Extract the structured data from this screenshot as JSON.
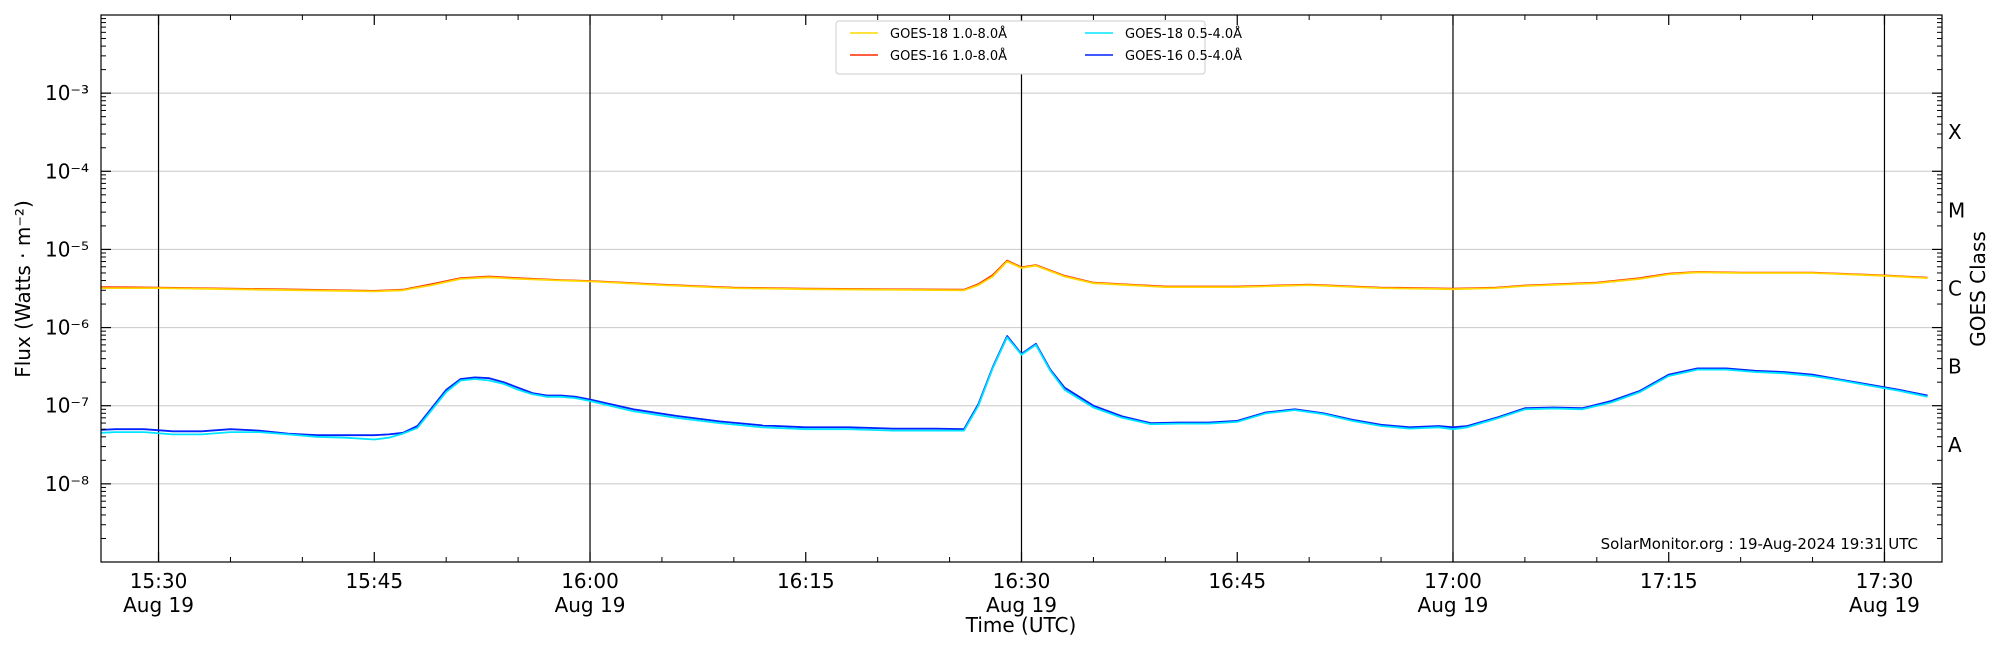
{
  "chart_data": {
    "type": "line",
    "xlabel": "Time (UTC)",
    "ylabel": "Flux (Watts · m⁻²)",
    "ylabel_right": "GOES Class",
    "y_scale": "log",
    "ylim": [
      1e-09,
      0.01
    ],
    "xlim": [
      "2024-08-19 15:26",
      "2024-08-19 17:34"
    ],
    "grid": "horizontal",
    "legend_position": "top-center",
    "y_ticks": [
      {
        "value": 1e-08,
        "label": "10⁻⁸"
      },
      {
        "value": 1e-07,
        "label": "10⁻⁷"
      },
      {
        "value": 1e-06,
        "label": "10⁻⁶"
      },
      {
        "value": 1e-05,
        "label": "10⁻⁵"
      },
      {
        "value": 0.0001,
        "label": "10⁻⁴"
      },
      {
        "value": 0.001,
        "label": "10⁻³"
      }
    ],
    "x_ticks": [
      {
        "time": "15:30",
        "label": "15:30",
        "date": "Aug 19",
        "vline": true
      },
      {
        "time": "15:45",
        "label": "15:45",
        "date": "",
        "vline": false
      },
      {
        "time": "16:00",
        "label": "16:00",
        "date": "Aug 19",
        "vline": true
      },
      {
        "time": "16:15",
        "label": "16:15",
        "date": "",
        "vline": false
      },
      {
        "time": "16:30",
        "label": "16:30",
        "date": "Aug 19",
        "vline": true
      },
      {
        "time": "16:45",
        "label": "16:45",
        "date": "",
        "vline": false
      },
      {
        "time": "17:00",
        "label": "17:00",
        "date": "Aug 19",
        "vline": true
      },
      {
        "time": "17:15",
        "label": "17:15",
        "date": "",
        "vline": false
      },
      {
        "time": "17:30",
        "label": "17:30",
        "date": "Aug 19",
        "vline": true
      }
    ],
    "goes_classes": [
      {
        "label": "A",
        "value": 3.16e-08
      },
      {
        "label": "B",
        "value": 3.16e-07
      },
      {
        "label": "C",
        "value": 3.16e-06
      },
      {
        "label": "M",
        "value": 3.16e-05
      },
      {
        "label": "X",
        "value": 0.000316
      }
    ],
    "series": [
      {
        "name": "GOES-18 1.0-8.0Å",
        "color": "#ffd700",
        "x": [
          "15:26",
          "15:30",
          "15:35",
          "15:40",
          "15:45",
          "15:47",
          "15:49",
          "15:51",
          "15:53",
          "15:55",
          "15:58",
          "16:00",
          "16:05",
          "16:10",
          "16:15",
          "16:20",
          "16:26",
          "16:27",
          "16:28",
          "16:29",
          "16:30",
          "16:31",
          "16:33",
          "16:35",
          "16:40",
          "16:45",
          "16:50",
          "16:55",
          "17:00",
          "17:03",
          "17:05",
          "17:10",
          "17:13",
          "17:15",
          "17:17",
          "17:20",
          "17:25",
          "17:30",
          "17:33"
        ],
        "values": [
          3.2e-06,
          3.2e-06,
          3.1e-06,
          3e-06,
          2.9e-06,
          3e-06,
          3.5e-06,
          4.2e-06,
          4.4e-06,
          4.2e-06,
          4e-06,
          3.9e-06,
          3.5e-06,
          3.2e-06,
          3.1e-06,
          3.05e-06,
          3e-06,
          3.5e-06,
          4.5e-06,
          7e-06,
          5.8e-06,
          6.2e-06,
          4.5e-06,
          3.7e-06,
          3.3e-06,
          3.3e-06,
          3.5e-06,
          3.2e-06,
          3.1e-06,
          3.2e-06,
          3.4e-06,
          3.7e-06,
          4.2e-06,
          4.8e-06,
          5.1e-06,
          5e-06,
          5e-06,
          4.6e-06,
          4.3e-06
        ]
      },
      {
        "name": "GOES-16 1.0-8.0Å",
        "color": "#ff2a00",
        "x": [
          "15:26",
          "15:30",
          "15:35",
          "15:40",
          "15:45",
          "15:47",
          "15:49",
          "15:51",
          "15:53",
          "15:55",
          "15:58",
          "16:00",
          "16:05",
          "16:10",
          "16:15",
          "16:20",
          "16:26",
          "16:27",
          "16:28",
          "16:29",
          "16:30",
          "16:31",
          "16:33",
          "16:35",
          "16:40",
          "16:45",
          "16:50",
          "16:55",
          "17:00",
          "17:03",
          "17:05",
          "17:10",
          "17:13",
          "17:15",
          "17:17",
          "17:20",
          "17:25",
          "17:30",
          "17:33"
        ],
        "values": [
          3.3e-06,
          3.25e-06,
          3.15e-06,
          3.05e-06,
          2.95e-06,
          3.05e-06,
          3.6e-06,
          4.3e-06,
          4.5e-06,
          4.3e-06,
          4.05e-06,
          3.95e-06,
          3.55e-06,
          3.25e-06,
          3.15e-06,
          3.1e-06,
          3.05e-06,
          3.6e-06,
          4.7e-06,
          7.2e-06,
          5.9e-06,
          6.3e-06,
          4.6e-06,
          3.75e-06,
          3.35e-06,
          3.35e-06,
          3.55e-06,
          3.25e-06,
          3.15e-06,
          3.25e-06,
          3.45e-06,
          3.75e-06,
          4.3e-06,
          4.9e-06,
          5.15e-06,
          5.05e-06,
          5.05e-06,
          4.65e-06,
          4.35e-06
        ]
      },
      {
        "name": "GOES-18 0.5-4.0Å",
        "color": "#00e5ff",
        "x": [
          "15:26",
          "15:27",
          "15:29",
          "15:31",
          "15:33",
          "15:35",
          "15:37",
          "15:39",
          "15:41",
          "15:43",
          "15:45",
          "15:46",
          "15:47",
          "15:48",
          "15:50",
          "15:51",
          "15:52",
          "15:53",
          "15:54",
          "15:55",
          "15:56",
          "15:57",
          "15:58",
          "15:59",
          "16:00",
          "16:03",
          "16:06",
          "16:09",
          "16:12",
          "16:15",
          "16:18",
          "16:21",
          "16:24",
          "16:26",
          "16:27",
          "16:28",
          "16:29",
          "16:30",
          "16:31",
          "16:32",
          "16:33",
          "16:35",
          "16:37",
          "16:39",
          "16:41",
          "16:43",
          "16:45",
          "16:47",
          "16:49",
          "16:51",
          "16:53",
          "16:55",
          "16:57",
          "16:59",
          "17:00",
          "17:01",
          "17:03",
          "17:05",
          "17:07",
          "17:09",
          "17:11",
          "17:13",
          "17:15",
          "17:17",
          "17:19",
          "17:21",
          "17:23",
          "17:25",
          "17:27",
          "17:29",
          "17:31",
          "17:33"
        ],
        "values": [
          4.5e-08,
          4.6e-08,
          4.6e-08,
          4.3e-08,
          4.3e-08,
          4.6e-08,
          4.6e-08,
          4.3e-08,
          4e-08,
          3.9e-08,
          3.7e-08,
          3.9e-08,
          4.4e-08,
          5.2e-08,
          1.5e-07,
          2.1e-07,
          2.2e-07,
          2.1e-07,
          1.9e-07,
          1.6e-07,
          1.4e-07,
          1.3e-07,
          1.3e-07,
          1.25e-07,
          1.15e-07,
          8.5e-08,
          7e-08,
          6e-08,
          5.3e-08,
          5e-08,
          5e-08,
          4.8e-08,
          4.8e-08,
          4.8e-08,
          1e-07,
          3e-07,
          7.5e-07,
          4.5e-07,
          6e-07,
          2.8e-07,
          1.6e-07,
          9.5e-08,
          7e-08,
          5.8e-08,
          5.9e-08,
          5.9e-08,
          6.2e-08,
          8e-08,
          8.8e-08,
          7.8e-08,
          6.4e-08,
          5.5e-08,
          5.1e-08,
          5.3e-08,
          5e-08,
          5.3e-08,
          6.8e-08,
          9e-08,
          9.2e-08,
          9e-08,
          1.1e-07,
          1.5e-07,
          2.4e-07,
          2.9e-07,
          2.9e-07,
          2.7e-07,
          2.6e-07,
          2.4e-07,
          2.1e-07,
          1.8e-07,
          1.55e-07,
          1.3e-07
        ]
      },
      {
        "name": "GOES-16 0.5-4.0Å",
        "color": "#0022ff",
        "x": [
          "15:26",
          "15:27",
          "15:29",
          "15:31",
          "15:33",
          "15:35",
          "15:37",
          "15:39",
          "15:41",
          "15:43",
          "15:45",
          "15:46",
          "15:47",
          "15:48",
          "15:50",
          "15:51",
          "15:52",
          "15:53",
          "15:54",
          "15:55",
          "15:56",
          "15:57",
          "15:58",
          "15:59",
          "16:00",
          "16:03",
          "16:06",
          "16:09",
          "16:12",
          "16:15",
          "16:18",
          "16:21",
          "16:24",
          "16:26",
          "16:27",
          "16:28",
          "16:29",
          "16:30",
          "16:31",
          "16:32",
          "16:33",
          "16:35",
          "16:37",
          "16:39",
          "16:41",
          "16:43",
          "16:45",
          "16:47",
          "16:49",
          "16:51",
          "16:53",
          "16:55",
          "16:57",
          "16:59",
          "17:00",
          "17:01",
          "17:03",
          "17:05",
          "17:07",
          "17:09",
          "17:11",
          "17:13",
          "17:15",
          "17:17",
          "17:19",
          "17:21",
          "17:23",
          "17:25",
          "17:27",
          "17:29",
          "17:31",
          "17:33"
        ],
        "values": [
          4.9e-08,
          5e-08,
          5e-08,
          4.7e-08,
          4.7e-08,
          5e-08,
          4.8e-08,
          4.4e-08,
          4.2e-08,
          4.2e-08,
          4.2e-08,
          4.3e-08,
          4.5e-08,
          5.5e-08,
          1.6e-07,
          2.2e-07,
          2.3e-07,
          2.25e-07,
          2e-07,
          1.7e-07,
          1.45e-07,
          1.35e-07,
          1.35e-07,
          1.3e-07,
          1.2e-07,
          9e-08,
          7.4e-08,
          6.3e-08,
          5.6e-08,
          5.3e-08,
          5.3e-08,
          5.1e-08,
          5.1e-08,
          5e-08,
          1.05e-07,
          3.1e-07,
          7.8e-07,
          4.6e-07,
          6.2e-07,
          2.9e-07,
          1.7e-07,
          1e-07,
          7.3e-08,
          6e-08,
          6.1e-08,
          6.1e-08,
          6.4e-08,
          8.2e-08,
          9e-08,
          8e-08,
          6.6e-08,
          5.7e-08,
          5.3e-08,
          5.5e-08,
          5.3e-08,
          5.5e-08,
          7e-08,
          9.3e-08,
          9.5e-08,
          9.3e-08,
          1.15e-07,
          1.55e-07,
          2.5e-07,
          3e-07,
          3e-07,
          2.8e-07,
          2.7e-07,
          2.5e-07,
          2.15e-07,
          1.85e-07,
          1.6e-07,
          1.35e-07
        ]
      }
    ]
  },
  "watermark": "SolarMonitor.org : 19-Aug-2024 19:31 UTC"
}
